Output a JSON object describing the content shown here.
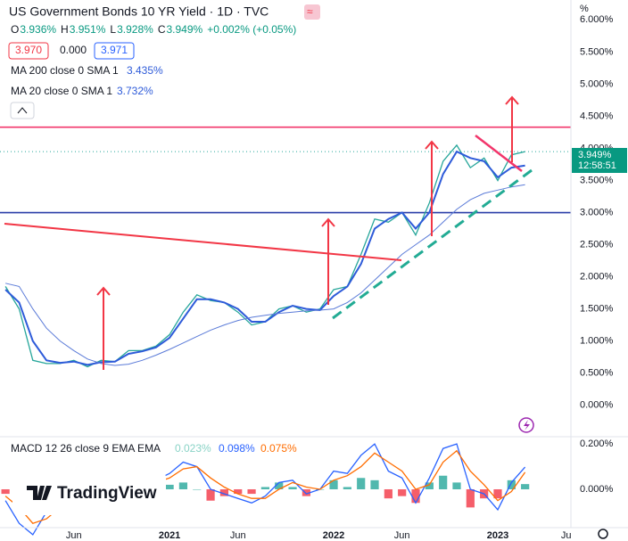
{
  "header": {
    "ohlc": [
      {
        "key": "O",
        "value": "3.936%"
      },
      {
        "key": "H",
        "value": "3.951%"
      },
      {
        "key": "L",
        "value": "3.928%"
      },
      {
        "key": "C",
        "value": "3.949%"
      }
    ],
    "change": "+0.002% (+0.05%)",
    "boxes": [
      "3.970",
      "0.000",
      "3.971"
    ],
    "ma200": {
      "label": "MA 200 close 0 SMA 1",
      "value": "3.435%"
    },
    "ma20": {
      "label": "MA 20 close 0 SMA 1",
      "value": "3.732%"
    },
    "macd": {
      "label": "MACD 12 26 close 9 EMA EMA",
      "hist": "0.023%",
      "macd": "0.098%",
      "signal": "0.075%"
    },
    "price_tag": {
      "price": "3.949%",
      "countdown": "12:58:51"
    },
    "unit": "%",
    "logo": "TradingView"
  },
  "chart_data": [
    {
      "type": "line",
      "title": "US Government Bonds 10 YR Yield · 1D · TVC",
      "x": [
        0,
        1,
        2,
        3,
        4,
        5,
        6,
        7,
        8,
        9,
        10,
        11,
        12,
        13,
        14,
        15,
        16,
        17,
        18,
        19,
        20,
        21,
        22,
        23,
        24,
        25,
        26,
        27,
        28,
        29,
        30,
        31,
        32,
        33,
        34,
        35,
        36,
        37,
        38
      ],
      "series": [
        {
          "name": "Yield",
          "color": "#26a69a",
          "width": 1.3,
          "values": [
            1.85,
            1.5,
            0.7,
            0.65,
            0.65,
            0.7,
            0.6,
            0.7,
            0.68,
            0.85,
            0.85,
            0.92,
            1.1,
            1.45,
            1.72,
            1.63,
            1.6,
            1.45,
            1.25,
            1.3,
            1.5,
            1.55,
            1.45,
            1.5,
            1.8,
            1.85,
            2.35,
            2.9,
            2.85,
            3.0,
            2.65,
            3.15,
            3.8,
            4.05,
            3.7,
            3.85,
            3.5,
            3.9,
            3.949
          ]
        },
        {
          "name": "MA 20",
          "color": "#2e5bd9",
          "width": 2,
          "values": [
            1.8,
            1.6,
            1.0,
            0.7,
            0.66,
            0.68,
            0.63,
            0.67,
            0.68,
            0.8,
            0.84,
            0.9,
            1.05,
            1.35,
            1.65,
            1.65,
            1.6,
            1.5,
            1.3,
            1.3,
            1.45,
            1.55,
            1.5,
            1.48,
            1.7,
            1.85,
            2.2,
            2.75,
            2.9,
            3.0,
            2.75,
            3.0,
            3.6,
            3.95,
            3.85,
            3.8,
            3.55,
            3.7,
            3.732
          ]
        },
        {
          "name": "MA 200",
          "color": "#5b7bd8",
          "width": 1,
          "values": [
            1.9,
            1.85,
            1.5,
            1.2,
            1.0,
            0.85,
            0.72,
            0.65,
            0.62,
            0.64,
            0.7,
            0.78,
            0.87,
            0.97,
            1.07,
            1.17,
            1.25,
            1.32,
            1.37,
            1.4,
            1.43,
            1.45,
            1.47,
            1.48,
            1.5,
            1.6,
            1.75,
            1.95,
            2.15,
            2.35,
            2.5,
            2.65,
            2.85,
            3.05,
            3.2,
            3.3,
            3.35,
            3.4,
            3.435
          ]
        }
      ],
      "xlim": [
        -0.4,
        41.35
      ],
      "xticks": [
        {
          "value": 5,
          "label": "Jun"
        },
        {
          "value": 12,
          "label": "2021"
        },
        {
          "value": 17,
          "label": "Jun"
        },
        {
          "value": 24,
          "label": "2022"
        },
        {
          "value": 29,
          "label": "Jun"
        },
        {
          "value": 36,
          "label": "2023"
        },
        {
          "value": 41,
          "label": "Ju"
        }
      ],
      "ylim": [
        -0.49,
        6.31
      ],
      "yticks": [
        {
          "value": 0,
          "label": "0.000%"
        },
        {
          "value": 0.5,
          "label": "0.500%"
        },
        {
          "value": 1,
          "label": "1.000%"
        },
        {
          "value": 1.5,
          "label": "1.500%"
        },
        {
          "value": 2,
          "label": "2.000%"
        },
        {
          "value": 2.5,
          "label": "2.500%"
        },
        {
          "value": 3,
          "label": "3.000%"
        },
        {
          "value": 3.5,
          "label": "3.500%"
        },
        {
          "value": 4,
          "label": "4.000%"
        },
        {
          "value": 4.5,
          "label": "4.500%"
        },
        {
          "value": 5,
          "label": "5.000%"
        },
        {
          "value": 5.5,
          "label": "5.500%"
        },
        {
          "value": 6,
          "label": "6.000%"
        }
      ],
      "hlines": [
        {
          "value": 4.33,
          "color": "#f2366b"
        },
        {
          "value": 3.0,
          "color": "#2a3ea8"
        },
        {
          "value": 3.949,
          "color": "#26a69a"
        }
      ]
    },
    {
      "type": "macd",
      "x": [
        0,
        1,
        2,
        3,
        4,
        5,
        6,
        7,
        8,
        9,
        10,
        11,
        12,
        13,
        14,
        15,
        16,
        17,
        18,
        19,
        20,
        21,
        22,
        23,
        24,
        25,
        26,
        27,
        28,
        29,
        30,
        31,
        32,
        33,
        34,
        35,
        36,
        37,
        38
      ],
      "histogram": [
        -0.02,
        -0.07,
        -0.05,
        0.03,
        0.05,
        0.03,
        0.0,
        0.01,
        0.0,
        0.02,
        0.0,
        0.01,
        0.02,
        0.03,
        0.0,
        -0.05,
        -0.03,
        -0.02,
        -0.02,
        0.01,
        0.03,
        0.01,
        -0.03,
        0.0,
        0.04,
        0.01,
        0.05,
        0.04,
        -0.04,
        -0.03,
        -0.06,
        0.03,
        0.06,
        0.03,
        -0.08,
        -0.04,
        -0.04,
        0.04,
        0.023
      ],
      "up_color": "#26a69a",
      "down_color": "#f23645",
      "series": [
        {
          "name": "MACD",
          "color": "#2962ff",
          "values": [
            -0.05,
            -0.15,
            -0.2,
            -0.1,
            -0.03,
            0.0,
            -0.02,
            0.01,
            0.0,
            0.03,
            0.02,
            0.04,
            0.07,
            0.12,
            0.1,
            0.0,
            -0.02,
            -0.04,
            -0.06,
            -0.03,
            0.03,
            0.04,
            -0.02,
            0.0,
            0.08,
            0.07,
            0.15,
            0.2,
            0.08,
            0.05,
            -0.06,
            0.05,
            0.18,
            0.2,
            0.0,
            -0.02,
            -0.09,
            0.03,
            0.098
          ]
        },
        {
          "name": "Signal",
          "color": "#ff6d00",
          "values": [
            -0.03,
            -0.08,
            -0.15,
            -0.13,
            -0.08,
            -0.03,
            -0.02,
            0.0,
            0.0,
            0.01,
            0.02,
            0.03,
            0.05,
            0.09,
            0.1,
            0.05,
            0.01,
            -0.02,
            -0.04,
            -0.04,
            0.0,
            0.03,
            0.01,
            0.0,
            0.04,
            0.06,
            0.1,
            0.16,
            0.12,
            0.08,
            0.0,
            0.02,
            0.12,
            0.17,
            0.08,
            0.02,
            -0.05,
            -0.01,
            0.075
          ]
        }
      ],
      "xlim": [
        -0.4,
        41.35
      ],
      "ylim": [
        -0.169,
        0.224
      ],
      "yticks": [
        {
          "value": 0.2,
          "label": "0.200%"
        },
        {
          "value": 0,
          "label": "0.000%"
        }
      ]
    }
  ]
}
